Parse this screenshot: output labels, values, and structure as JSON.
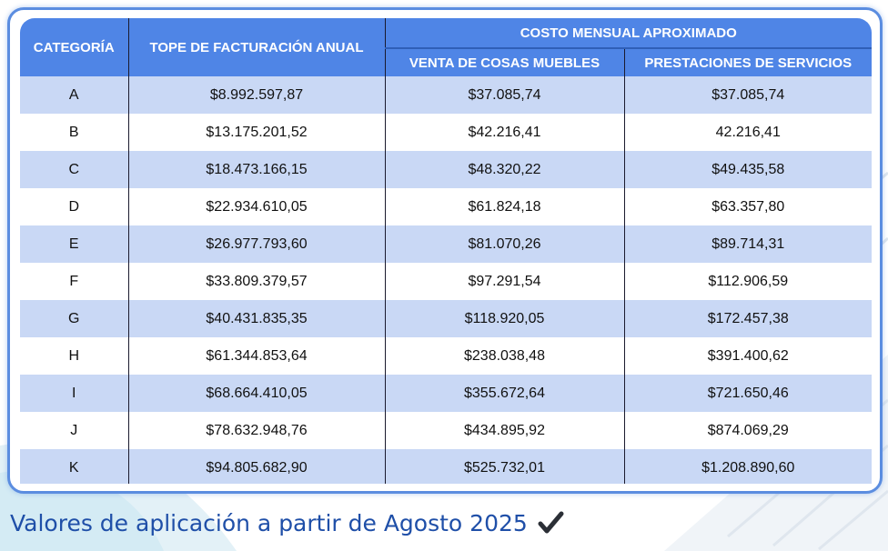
{
  "table": {
    "headers": {
      "category": "CATEGORÍA",
      "annual_cap": "TOPE DE FACTURACIÓN ANUAL",
      "monthly_cost_group": "COSTO MENSUAL APROXIMADO",
      "goods_sales": "VENTA DE COSAS MUEBLES",
      "services": "PRESTACIONES DE SERVICIOS"
    },
    "rows": [
      {
        "category": "A",
        "annual_cap": "$8.992.597,87",
        "goods_sales": "$37.085,74",
        "services": "$37.085,74"
      },
      {
        "category": "B",
        "annual_cap": "$13.175.201,52",
        "goods_sales": "$42.216,41",
        "services": "42.216,41"
      },
      {
        "category": "C",
        "annual_cap": "$18.473.166,15",
        "goods_sales": "$48.320,22",
        "services": "$49.435,58"
      },
      {
        "category": "D",
        "annual_cap": "$22.934.610,05",
        "goods_sales": "$61.824,18",
        "services": "$63.357,80"
      },
      {
        "category": "E",
        "annual_cap": "$26.977.793,60",
        "goods_sales": "$81.070,26",
        "services": "$89.714,31"
      },
      {
        "category": "F",
        "annual_cap": "$33.809.379,57",
        "goods_sales": "$97.291,54",
        "services": "$112.906,59"
      },
      {
        "category": "G",
        "annual_cap": "$40.431.835,35",
        "goods_sales": "$118.920,05",
        "services": "$172.457,38"
      },
      {
        "category": "H",
        "annual_cap": "$61.344.853,64",
        "goods_sales": "$238.038,48",
        "services": "$391.400,62"
      },
      {
        "category": "I",
        "annual_cap": "$68.664.410,05",
        "goods_sales": "$355.672,64",
        "services": "$721.650,46"
      },
      {
        "category": "J",
        "annual_cap": "$78.632.948,76",
        "goods_sales": "$434.895,92",
        "services": "$874.069,29"
      },
      {
        "category": "K",
        "annual_cap": "$94.805.682,90",
        "goods_sales": "$525.732,01",
        "services": "$1.208.890,60"
      }
    ]
  },
  "footer": {
    "text": "Valores de aplicación a partir de Agosto 2025",
    "icon": "checkmark-icon"
  },
  "colors": {
    "header_bg": "#4f85e6",
    "row_alt_bg": "#c9d8f5",
    "border": "#5b8de0",
    "footer_text": "#1f4fa8"
  }
}
